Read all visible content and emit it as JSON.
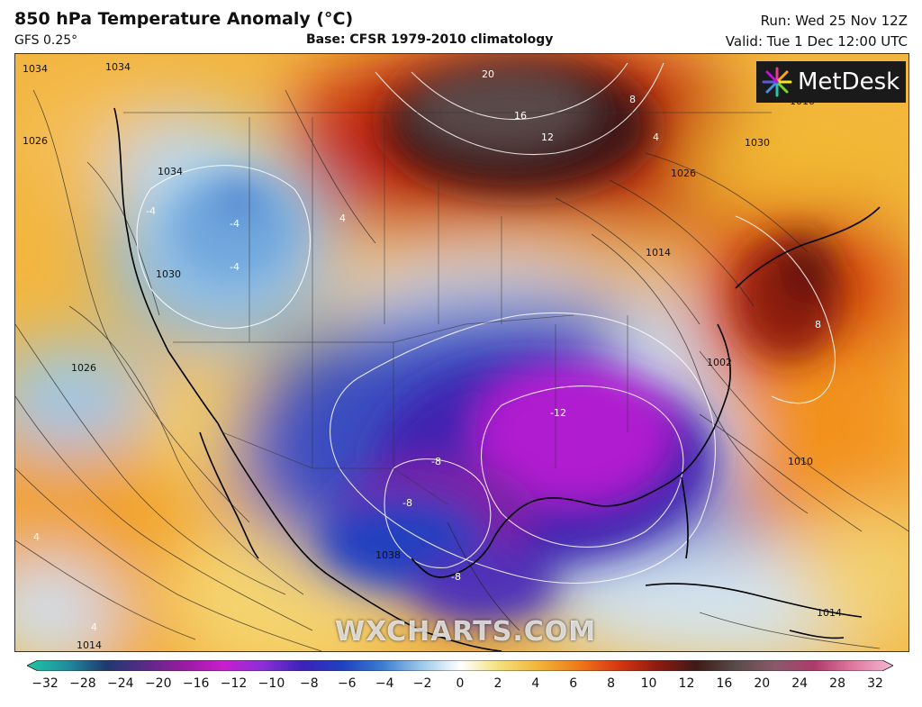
{
  "header": {
    "title": "850 hPa Temperature Anomaly (°C)",
    "model": "GFS 0.25°",
    "base": "Base: CFSR 1979-2010 climatology",
    "run": "Run: Wed 25 Nov 12Z",
    "valid": "Valid: Tue 1 Dec 12:00 UTC"
  },
  "logo": {
    "text": "MetDesk",
    "icon": "metdesk-starburst-icon"
  },
  "watermark": "WXCHARTS.COM",
  "colorbar": {
    "ticks": [
      "−32",
      "−28",
      "−24",
      "−20",
      "−16",
      "−12",
      "−10",
      "−8",
      "−6",
      "−4",
      "−2",
      "0",
      "2",
      "4",
      "6",
      "8",
      "10",
      "12",
      "16",
      "20",
      "24",
      "28",
      "32"
    ],
    "colors": [
      "#1fc7a0",
      "#1f8fa0",
      "#1f3a70",
      "#5a2a86",
      "#9b1aa3",
      "#c81ed0",
      "#8a2fd6",
      "#3b22b8",
      "#2040c0",
      "#3a7ad0",
      "#9ac8ea",
      "#ffffff",
      "#f4e07a",
      "#f2b43a",
      "#ee7a1a",
      "#d8380f",
      "#901a10",
      "#3e1a18",
      "#5a4a4a",
      "#8a5a6a",
      "#b03a6a",
      "#e07aa0",
      "#f4b8d2"
    ]
  },
  "map_labels": {
    "isobars": [
      "1034",
      "1026",
      "1034",
      "1030",
      "1026",
      "1038",
      "1014",
      "1010",
      "1002",
      "1030",
      "1026",
      "1014",
      "1034",
      "1014",
      "1010"
    ],
    "anomalies": [
      "20",
      "16",
      "12",
      "8",
      "4",
      "-4",
      "-4",
      "-4",
      "4",
      "-8",
      "-12",
      "-8",
      "-8",
      "8",
      "4",
      "4"
    ]
  }
}
